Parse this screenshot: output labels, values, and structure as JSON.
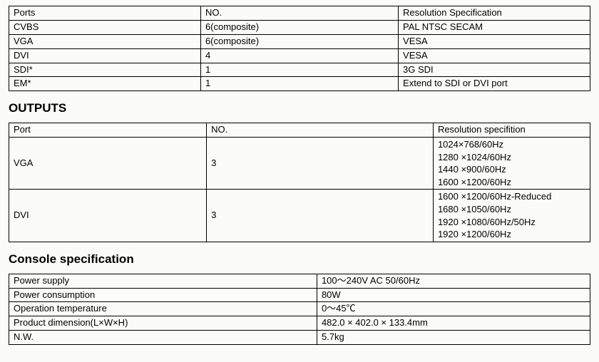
{
  "ports_table": {
    "headers": [
      "Ports",
      "NO.",
      "Resolution Specification"
    ],
    "rows": [
      [
        "CVBS",
        "6(composite)",
        "PAL NTSC SECAM"
      ],
      [
        "VGA",
        "6(composite)",
        "VESA"
      ],
      [
        "DVI",
        "4",
        "VESA"
      ],
      [
        "SDI*",
        "1",
        "3G SDI"
      ],
      [
        "EM*",
        "1",
        "Extend to SDI or DVI port"
      ]
    ]
  },
  "outputs_heading": "OUTPUTS",
  "outputs_table": {
    "headers": [
      "Port",
      "NO.",
      "Resolution specifition"
    ],
    "rows": [
      {
        "port": "VGA",
        "no": "3",
        "res": "1024×768/60Hz\n1280 ×1024/60Hz\n1440 ×900/60Hz\n1600 ×1200/60Hz"
      },
      {
        "port": "DVI",
        "no": "3",
        "res": "1600 ×1200/60Hz-Reduced\n1680 ×1050/60Hz\n1920 ×1080/60Hz/50Hz\n1920 ×1200/60Hz"
      }
    ]
  },
  "console_heading": "Console specification",
  "console_table": {
    "rows": [
      [
        " Power supply",
        "100～240V AC 50/60Hz"
      ],
      [
        "Power consumption",
        "80W"
      ],
      [
        "Operation temperature",
        "0～45℃"
      ],
      [
        "Product dimension(L×W×H)",
        "482.0  ×  402.0  ×  133.4mm"
      ],
      [
        "N.W.",
        "5.7kg"
      ]
    ]
  }
}
